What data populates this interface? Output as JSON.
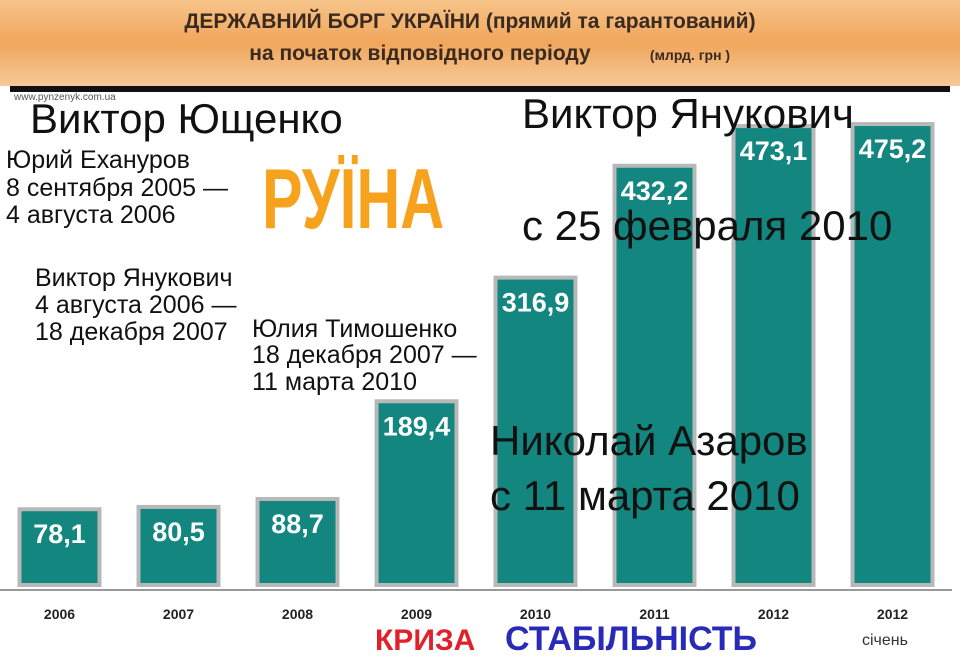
{
  "chart_data": {
    "type": "bar",
    "title": "ДЕРЖАВНИЙ БОРГ УКРАЇНИ (прямий та гарантований)",
    "subtitle": "на початок відповідного періоду",
    "unit": "(млрд. грн )",
    "source": "www.pynzenyk.com.ua",
    "categories": [
      "2006",
      "2007",
      "2008",
      "2009",
      "2010",
      "2011",
      "2012",
      "2012"
    ],
    "values": [
      78.1,
      80.5,
      88.7,
      189.4,
      316.9,
      432.2,
      473.1,
      475.2
    ],
    "value_labels": [
      "78,1",
      "80,5",
      "88,7",
      "189,4",
      "316,9",
      "432,2",
      "473,1",
      "475,2"
    ],
    "color": "#13877f",
    "ylim": [
      0,
      500
    ],
    "annotations": [
      "Виктор Ющенко",
      "Юрий Ехануров",
      "8 сентября 2005 —",
      " 4 августа 2006",
      "Виктор Янукович",
      "4 августа 2006 —",
      "18 декабря 2007",
      "Юлия Тимошенко",
      "18 декабря 2007 —",
      "11 марта 2010",
      "Виктор Янукович",
      "с 25 февраля 2010",
      "Николай Азаров",
      "с 11 марта 2010",
      "РУЇНА",
      "КРИЗА",
      "СТАБІЛЬНІСТЬ",
      "січень"
    ]
  }
}
